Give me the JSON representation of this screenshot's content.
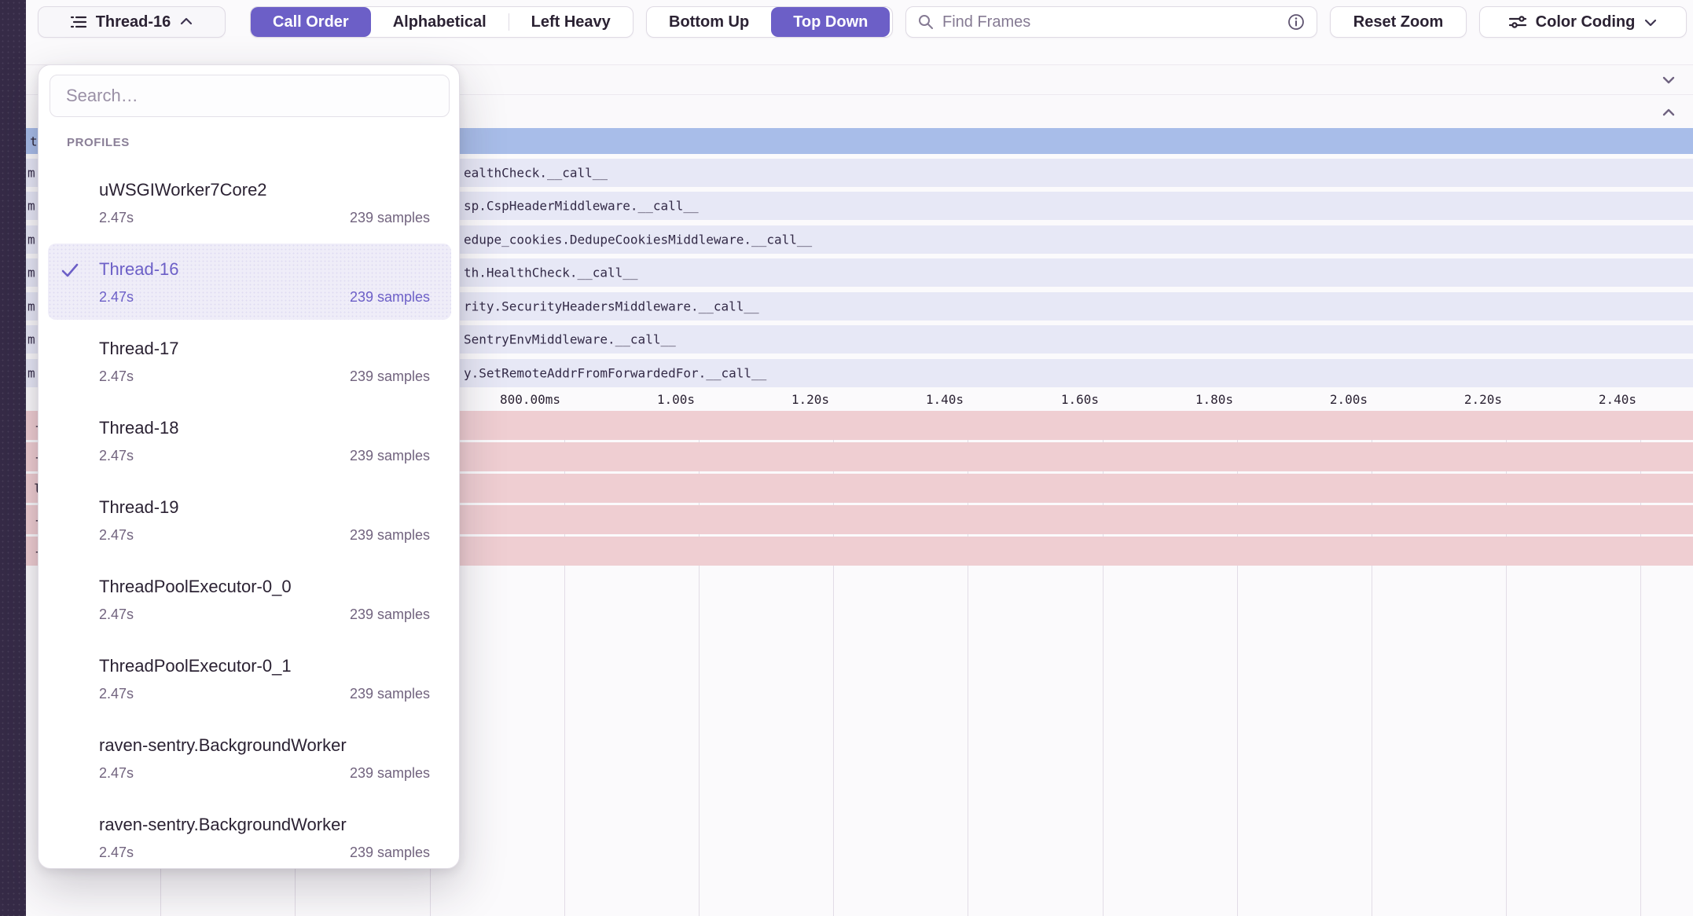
{
  "toolbar": {
    "thread_selector": {
      "label": "Thread-16"
    },
    "sort_control": {
      "options": [
        "Call Order",
        "Alphabetical",
        "Left Heavy"
      ],
      "selected": "Call Order"
    },
    "view_control": {
      "options": [
        "Bottom Up",
        "Top Down"
      ],
      "selected": "Top Down"
    },
    "find_frames_placeholder": "Find Frames",
    "reset_zoom_label": "Reset Zoom",
    "color_coding_label": "Color Coding"
  },
  "profiles_dropdown": {
    "search_placeholder": "Search…",
    "section_label": "PROFILES",
    "items": [
      {
        "name": "uWSGIWorker7Core2",
        "duration": "2.47s",
        "samples": "239 samples",
        "selected": false
      },
      {
        "name": "Thread-16",
        "duration": "2.47s",
        "samples": "239 samples",
        "selected": true
      },
      {
        "name": "Thread-17",
        "duration": "2.47s",
        "samples": "239 samples",
        "selected": false
      },
      {
        "name": "Thread-18",
        "duration": "2.47s",
        "samples": "239 samples",
        "selected": false
      },
      {
        "name": "Thread-19",
        "duration": "2.47s",
        "samples": "239 samples",
        "selected": false
      },
      {
        "name": "ThreadPoolExecutor-0_0",
        "duration": "2.47s",
        "samples": "239 samples",
        "selected": false
      },
      {
        "name": "ThreadPoolExecutor-0_1",
        "duration": "2.47s",
        "samples": "239 samples",
        "selected": false
      },
      {
        "name": "raven-sentry.BackgroundWorker",
        "duration": "2.47s",
        "samples": "239 samples",
        "selected": false
      },
      {
        "name": "raven-sentry.BackgroundWorker",
        "duration": "2.47s",
        "samples": "239 samples",
        "selected": false
      }
    ]
  },
  "flamechart": {
    "root_edge_text": "t",
    "frame_rows": [
      {
        "edge_text": "m",
        "label": "ealthCheck.__call__"
      },
      {
        "edge_text": "m",
        "label": "sp.CspHeaderMiddleware.__call__"
      },
      {
        "edge_text": "m",
        "label": "edupe_cookies.DedupeCookiesMiddleware.__call__"
      },
      {
        "edge_text": "m",
        "label": "th.HealthCheck.__call__"
      },
      {
        "edge_text": "m",
        "label": "rity.SecurityHeadersMiddleware.__call__"
      },
      {
        "edge_text": "m",
        "label": "SentryEnvMiddleware.__call__"
      },
      {
        "edge_text": "m",
        "label": "y.SetRemoteAddrFromForwardedFor.__call__"
      }
    ],
    "axis_ticks": [
      "800.00ms",
      "1.00s",
      "1.20s",
      "1.40s",
      "1.60s",
      "1.80s",
      "2.00s",
      "2.20s",
      "2.40s"
    ],
    "pink_row_edge_texts": [
      "-",
      "-",
      "l",
      "-",
      "-"
    ]
  },
  "colors": {
    "accent_purple": "#6C5FC7",
    "root_frame_blue": "#A8BDE9",
    "frame_lavender": "#E7E8F6",
    "frame_pink": "#EFCED2",
    "sidebar_dark": "#362B47"
  }
}
